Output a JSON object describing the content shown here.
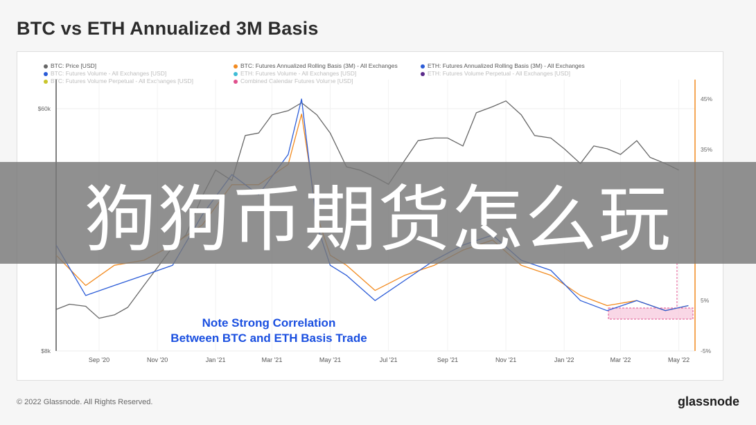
{
  "title": "BTC vs ETH Annualized 3M Basis",
  "legend": [
    {
      "label": "BTC: Price [USD]",
      "color": "#666666",
      "faded": false
    },
    {
      "label": "BTC: Futures Annualized Rolling Basis (3M) - All Exchanges",
      "color": "#f28a1e",
      "faded": false
    },
    {
      "label": "ETH: Futures Annualized Rolling Basis (3M) - All Exchanges",
      "color": "#2a5bd7",
      "faded": false
    },
    {
      "label": "BTC: Futures Volume - All Exchanges [USD]",
      "color": "#2a5bd7",
      "faded": true
    },
    {
      "label": "ETH: Futures Volume - All Exchanges [USD]",
      "color": "#3fbcd6",
      "faded": true
    },
    {
      "label": "ETH: Futures Volume Perpetual - All Exchanges [USD]",
      "color": "#5a2a8a",
      "faded": true
    },
    {
      "label": "BTC: Futures Volume Perpetual - All Exchanges [USD]",
      "color": "#c9c52a",
      "faded": true
    },
    {
      "label": "Combined Calendar Futures Volume [USD]",
      "color": "#e04f8c",
      "faded": true
    }
  ],
  "overlay_text": "狗狗币期货怎么玩",
  "annotation": {
    "line1": "Note Strong Correlation",
    "line2": "Between BTC and ETH Basis Trade"
  },
  "footer": {
    "copyright": "© 2022 Glassnode. All Rights Reserved.",
    "brand": "glassnode"
  },
  "chart_data": {
    "type": "line",
    "x_ticks": [
      "Sep '20",
      "Nov '20",
      "Jan '21",
      "Mar '21",
      "May '21",
      "Jul '21",
      "Sep '21",
      "Nov '21",
      "Jan '22",
      "Mar '22",
      "May '22"
    ],
    "y_left_ticks": [
      "$60k",
      "$8k"
    ],
    "y_right_ticks": [
      "45%",
      "35%",
      "5%",
      "-5%"
    ],
    "y_left_scale": "log",
    "y_left_range": [
      8000,
      60000
    ],
    "y_right_range": [
      -5,
      45
    ],
    "series": [
      {
        "name": "BTC: Price [USD]",
        "color": "#666666",
        "x": [
          "2020-08-01",
          "2020-08-15",
          "2020-09-01",
          "2020-09-15",
          "2020-10-01",
          "2020-10-15",
          "2020-11-01",
          "2020-11-15",
          "2020-12-01",
          "2020-12-15",
          "2021-01-01",
          "2021-01-15",
          "2021-02-01",
          "2021-02-15",
          "2021-03-01",
          "2021-03-15",
          "2021-04-01",
          "2021-04-15",
          "2021-05-01",
          "2021-05-15",
          "2021-06-01",
          "2021-06-15",
          "2021-07-01",
          "2021-07-15",
          "2021-08-01",
          "2021-08-15",
          "2021-09-01",
          "2021-09-15",
          "2021-10-01",
          "2021-10-15",
          "2021-11-01",
          "2021-11-15",
          "2021-12-01",
          "2021-12-15",
          "2022-01-01",
          "2022-01-15",
          "2022-02-01",
          "2022-02-15",
          "2022-03-01",
          "2022-03-15",
          "2022-04-01",
          "2022-04-15",
          "2022-05-01",
          "2022-05-15"
        ],
        "y": [
          11300,
          11800,
          11600,
          10500,
          10800,
          11500,
          13800,
          16000,
          19000,
          21000,
          29000,
          36000,
          33000,
          48000,
          49000,
          57000,
          59000,
          63000,
          57000,
          49000,
          37000,
          36000,
          34000,
          32000,
          39000,
          46000,
          47000,
          47000,
          44000,
          58000,
          61000,
          64000,
          57000,
          48000,
          47000,
          43000,
          38000,
          44000,
          43000,
          41000,
          46000,
          40000,
          38000,
          36000
        ]
      },
      {
        "name": "BTC: Futures Annualized Rolling Basis (3M) - All Exchanges",
        "color": "#f28a1e",
        "x": [
          "2020-08-01",
          "2020-09-01",
          "2020-10-01",
          "2020-11-01",
          "2020-12-01",
          "2021-01-01",
          "2021-02-01",
          "2021-03-01",
          "2021-04-01",
          "2021-04-15",
          "2021-05-01",
          "2021-05-15",
          "2021-06-01",
          "2021-07-01",
          "2021-08-01",
          "2021-09-01",
          "2021-10-01",
          "2021-11-01",
          "2021-12-01",
          "2022-01-01",
          "2022-02-01",
          "2022-03-01",
          "2022-04-01",
          "2022-05-01",
          "2022-05-25"
        ],
        "y": [
          14,
          8,
          12,
          13,
          16,
          20,
          28,
          28,
          32,
          42,
          22,
          14,
          12,
          7,
          10,
          12,
          15,
          17,
          12,
          10,
          6,
          4,
          5,
          3,
          4
        ]
      },
      {
        "name": "ETH: Futures Annualized Rolling Basis (3M) - All Exchanges",
        "color": "#2a5bd7",
        "x": [
          "2020-08-01",
          "2020-09-01",
          "2020-10-01",
          "2020-11-01",
          "2020-12-01",
          "2021-01-01",
          "2021-02-01",
          "2021-03-01",
          "2021-04-01",
          "2021-04-15",
          "2021-05-01",
          "2021-05-15",
          "2021-06-01",
          "2021-07-01",
          "2021-08-01",
          "2021-09-01",
          "2021-10-01",
          "2021-11-01",
          "2021-12-01",
          "2022-01-01",
          "2022-02-01",
          "2022-03-01",
          "2022-04-01",
          "2022-05-01",
          "2022-05-25"
        ],
        "y": [
          16,
          6,
          8,
          10,
          12,
          22,
          30,
          26,
          34,
          45,
          20,
          12,
          10,
          5,
          9,
          13,
          16,
          18,
          13,
          11,
          5,
          3,
          5,
          3,
          4
        ]
      }
    ]
  }
}
